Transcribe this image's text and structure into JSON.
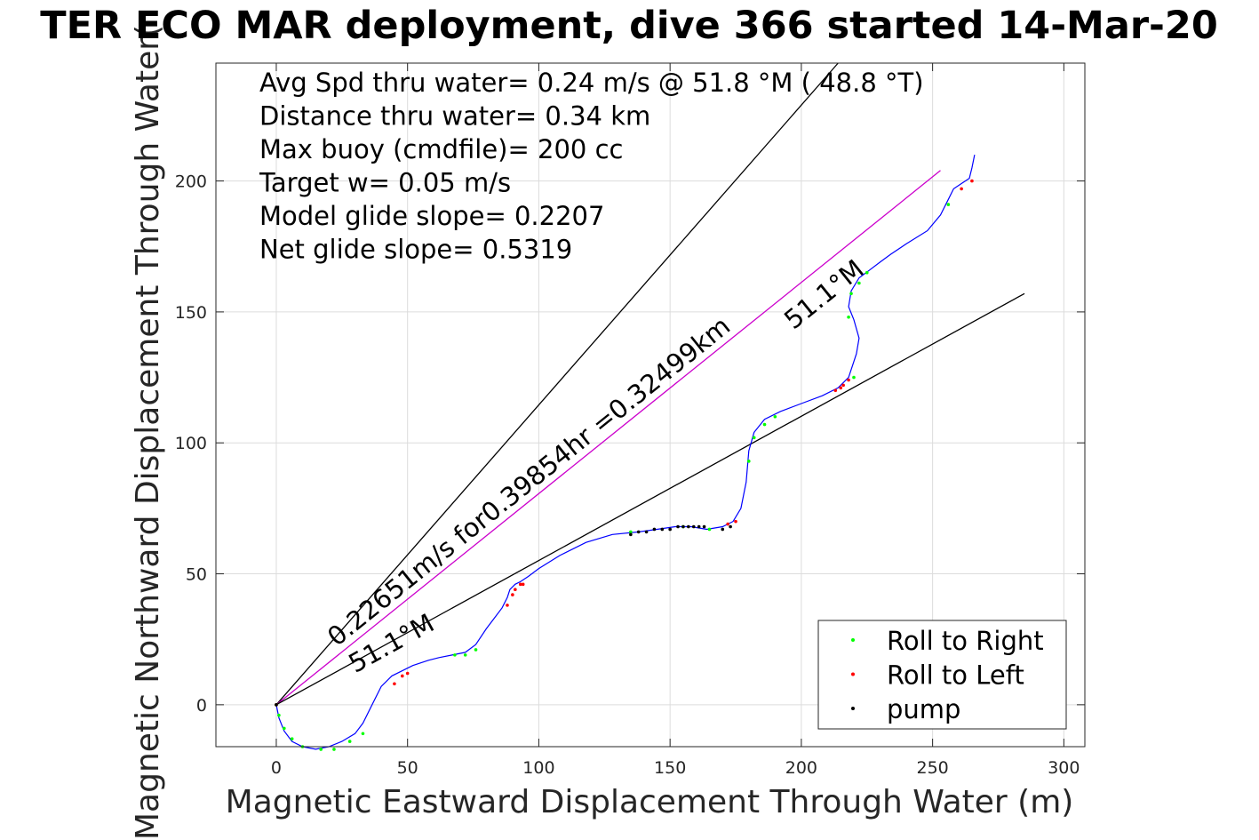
{
  "title": "TER ECO MAR deployment, dive 366 started 14-Mar-20",
  "chart_data": {
    "type": "line",
    "xlabel": "Magnetic Eastward Displacement Through Water (m)",
    "ylabel": "Magnetic Northward Displacement Through Water(",
    "xlim": [
      -23,
      308
    ],
    "ylim": [
      -16,
      245
    ],
    "xticks": [
      0,
      50,
      100,
      150,
      200,
      250,
      300
    ],
    "yticks": [
      0,
      50,
      100,
      150,
      200
    ],
    "grid": true,
    "legend_position": "bottom-right",
    "annotations": [
      "Avg Spd thru water=  0.24 m/s @  51.8 °M ( 48.8 °T)",
      "Distance thru water=  0.34 km",
      "Max buoy (cmdfile)= 200 cc",
      "Target w= 0.05 m/s",
      "Model glide slope= 0.2207",
      "Net glide slope= 0.5319"
    ],
    "line_labels": {
      "speed": "0.22651m/s for0.39854hr =0.32499km",
      "heading_upper": "51.1°M",
      "heading_lower": "51.1°M"
    },
    "reference_lines": [
      {
        "x": [
          0,
          214
        ],
        "y": [
          0,
          245
        ],
        "color": "#000000"
      },
      {
        "x": [
          0,
          253
        ],
        "y": [
          0,
          204
        ],
        "color": "#cc00cc"
      },
      {
        "x": [
          0,
          285
        ],
        "y": [
          0,
          157
        ],
        "color": "#000000"
      }
    ],
    "track": {
      "color": "#0000ff",
      "x": [
        0,
        1,
        3,
        6,
        10,
        15,
        20,
        25,
        30,
        33,
        36,
        40,
        44,
        48,
        52,
        58,
        62,
        67,
        72,
        76,
        80,
        83,
        86,
        88,
        89,
        91,
        93,
        96,
        100,
        108,
        118,
        128,
        138,
        145,
        152,
        158,
        164,
        170,
        174,
        177,
        179,
        180,
        182,
        186,
        192,
        200,
        208,
        214,
        218,
        221,
        222,
        220,
        218,
        219,
        222,
        226,
        230,
        234,
        240,
        248,
        253,
        256,
        258,
        261,
        264,
        265,
        266
      ],
      "y": [
        0,
        -5,
        -10,
        -14,
        -16,
        -17,
        -16,
        -14,
        -11,
        -7,
        -1,
        7,
        11,
        13,
        15,
        17,
        18,
        19,
        20,
        23,
        29,
        33,
        37,
        41,
        44,
        46,
        47,
        49,
        52,
        57,
        62,
        65,
        66,
        67,
        68,
        68,
        67,
        68,
        70,
        75,
        85,
        97,
        104,
        109,
        112,
        115,
        118,
        121,
        125,
        134,
        140,
        147,
        152,
        158,
        163,
        166,
        169,
        172,
        176,
        181,
        187,
        193,
        197,
        199,
        201,
        205,
        210
      ]
    },
    "series": [
      {
        "name": "Roll to Right",
        "color": "#00ff00",
        "x": [
          0,
          1,
          3,
          6,
          10,
          17,
          22,
          28,
          33,
          68,
          72,
          76,
          135,
          155,
          165,
          180,
          182,
          186,
          190,
          220,
          218,
          219,
          222,
          225,
          256
        ],
        "y": [
          0,
          -4,
          -9,
          -13,
          -16,
          -17,
          -17,
          -14,
          -11,
          19,
          19,
          21,
          66,
          68,
          67,
          93,
          102,
          107,
          110,
          125,
          148,
          157,
          161,
          165,
          191
        ]
      },
      {
        "name": "Roll to Left",
        "color": "#ff0000",
        "x": [
          0,
          45,
          48,
          50,
          88,
          90,
          91,
          93,
          94,
          172,
          175,
          213,
          215,
          216,
          218,
          261,
          265
        ],
        "y": [
          0,
          8,
          11,
          12,
          38,
          42,
          44,
          46,
          46,
          69,
          70,
          120,
          121,
          122,
          124,
          197,
          200
        ]
      },
      {
        "name": "pump",
        "color": "#000000",
        "x": [
          0,
          135,
          138,
          141,
          144,
          147,
          150,
          153,
          155,
          157,
          159,
          161,
          163,
          170,
          173
        ],
        "y": [
          0,
          65,
          66,
          66,
          67,
          67,
          67,
          68,
          68,
          68,
          68,
          68,
          68,
          67,
          68
        ]
      }
    ]
  }
}
